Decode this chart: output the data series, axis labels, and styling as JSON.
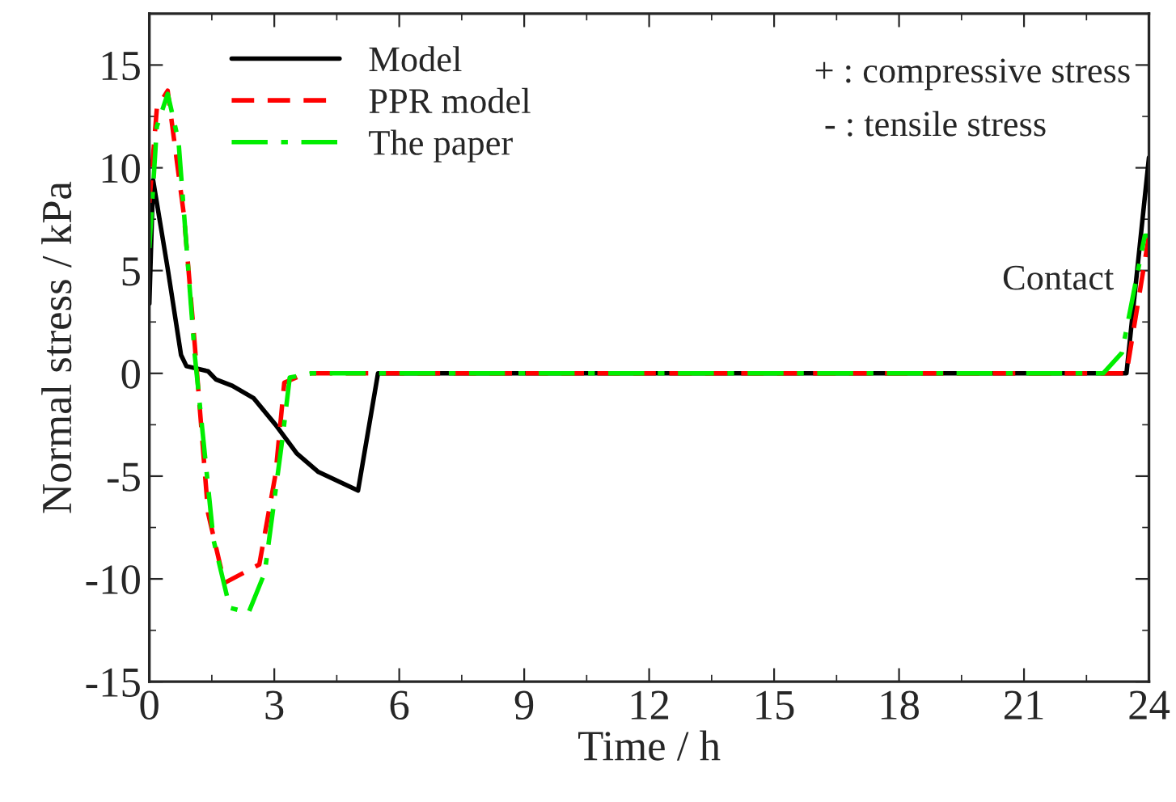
{
  "chart_data": {
    "type": "line",
    "xlabel": "Time / h",
    "ylabel": "Normal stress / kPa",
    "xlim": [
      0,
      24
    ],
    "xticks": [
      0,
      3,
      6,
      9,
      12,
      15,
      18,
      21,
      24
    ],
    "ylim": [
      -15,
      17.5
    ],
    "yticks": [
      -15,
      -10,
      -5,
      0,
      5,
      10,
      15
    ],
    "grid": false,
    "legend": "top left",
    "annotations": [
      "+ : compressive stress",
      "- : tensile stress",
      "Contact"
    ],
    "series": [
      {
        "name": "Model",
        "color": "#000000",
        "line_style": "solid",
        "x": [
          0,
          0.09,
          0.44,
          0.76,
          0.89,
          1.41,
          1.6,
          1.99,
          2.5,
          3.03,
          3.54,
          4.06,
          5.01,
          5.49,
          23.46,
          24
        ],
        "values": [
          3.4,
          9.4,
          5.1,
          0.9,
          0.35,
          0.1,
          -0.3,
          -0.6,
          -1.2,
          -2.5,
          -3.9,
          -4.8,
          -5.7,
          0,
          0,
          10.5
        ]
      },
      {
        "name": "PPR model",
        "color": "#ff0000",
        "line_style": "dashed",
        "x": [
          0,
          0.18,
          0.44,
          0.83,
          1.09,
          1.41,
          1.8,
          2.64,
          3.03,
          3.24,
          3.76,
          23.46,
          24
        ],
        "values": [
          8.3,
          12.9,
          13.75,
          7.7,
          1.4,
          -6.8,
          -10.2,
          -9.3,
          -4.9,
          -0.45,
          0,
          0,
          6.7
        ]
      },
      {
        "name": "The paper",
        "color": "#00ee00",
        "line_style": "dashdot",
        "x": [
          0,
          0.18,
          0.44,
          0.7,
          1.09,
          1.54,
          1.93,
          2.38,
          2.77,
          3.2,
          3.37,
          3.9,
          22.9,
          23.35,
          23.9,
          24
        ],
        "values": [
          6.1,
          12,
          13.6,
          11.3,
          0.9,
          -8.1,
          -11.4,
          -11.65,
          -9.7,
          -3.1,
          -0.2,
          0,
          0,
          1.0,
          6.7,
          6.7
        ]
      }
    ]
  }
}
